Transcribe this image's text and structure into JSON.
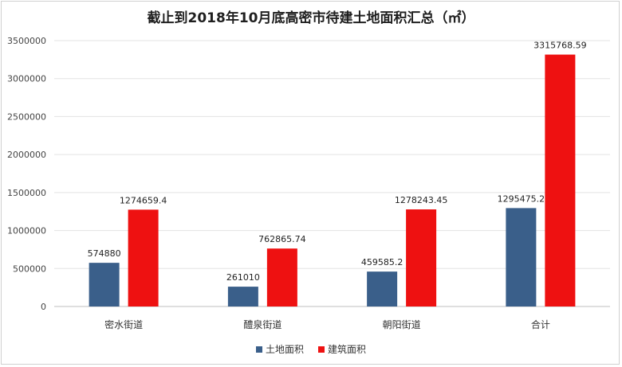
{
  "chart_data": {
    "type": "bar",
    "title": "截止到2018年10月底高密市待建土地面积汇总（㎡）",
    "categories": [
      "密水街道",
      "醴泉街道",
      "朝阳街道",
      "合计"
    ],
    "series": [
      {
        "name": "土地面积",
        "values": [
          574880,
          261010,
          459585.2,
          1295475.2
        ],
        "labels": [
          "574880",
          "261010",
          "459585.2",
          "1295475.2"
        ],
        "color": "#3a5f8a"
      },
      {
        "name": "建筑面积",
        "values": [
          1274659.4,
          762865.74,
          1278243.45,
          3315768.59
        ],
        "labels": [
          "1274659.4",
          "762865.74",
          "1278243.45",
          "3315768.59"
        ],
        "color": "#ee1111"
      }
    ],
    "ylim": [
      0,
      3500000
    ],
    "yticks": [
      0,
      500000,
      1000000,
      1500000,
      2000000,
      2500000,
      3000000,
      3500000
    ],
    "grid": true,
    "legend": "bottom"
  }
}
